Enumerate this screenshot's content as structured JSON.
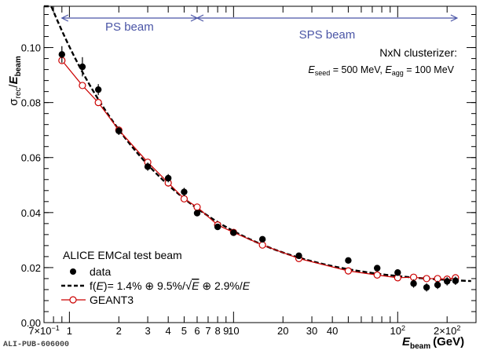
{
  "chart_data": {
    "type": "scatter",
    "x_scale": "log",
    "xlim": [
      0.7,
      300
    ],
    "ylim": [
      0,
      0.115
    ],
    "xlabel_main": "E",
    "xlabel_sub": "beam",
    "xlabel_unit": "(GeV)",
    "ylabel_sigma": "σ",
    "ylabel_sub1": "rec",
    "ylabel_slash": "/",
    "ylabel_E": "E",
    "ylabel_sub2": "beam",
    "y_ticks": [
      {
        "value": 0,
        "label": "0.00"
      },
      {
        "value": 0.02,
        "label": "0.02"
      },
      {
        "value": 0.04,
        "label": "0.04"
      },
      {
        "value": 0.06,
        "label": "0.06"
      },
      {
        "value": 0.08,
        "label": "0.08"
      },
      {
        "value": 0.1,
        "label": "0.10"
      }
    ],
    "x_tick_labels": [
      {
        "value": 0.7,
        "label": "7×10",
        "sup": "−1"
      },
      {
        "value": 1,
        "label": "1"
      },
      {
        "value": 2,
        "label": "2"
      },
      {
        "value": 3,
        "label": "3"
      },
      {
        "value": 4,
        "label": "4"
      },
      {
        "value": 5,
        "label": "5"
      },
      {
        "value": 6,
        "label": "6"
      },
      {
        "value": 7,
        "label": "7"
      },
      {
        "value": 8,
        "label": "8"
      },
      {
        "value": 9,
        "label": "9"
      },
      {
        "value": 10,
        "label": "10"
      },
      {
        "value": 20,
        "label": "20"
      },
      {
        "value": 30,
        "label": "30"
      },
      {
        "value": 40,
        "label": "40"
      },
      {
        "value": 100,
        "label": "10",
        "sup": "2"
      },
      {
        "value": 200,
        "label": "2×10",
        "sup": "2"
      }
    ],
    "x_minor_ticks": [
      0.8,
      0.9,
      50,
      60,
      70,
      80,
      90,
      300
    ],
    "series": [
      {
        "name": "data",
        "marker": "filled-circle",
        "color": "#000000",
        "points": [
          {
            "x": 0.9,
            "y": 0.0975,
            "err": 0.003
          },
          {
            "x": 1.2,
            "y": 0.093,
            "err": 0.0035
          },
          {
            "x": 1.5,
            "y": 0.0847,
            "err": 0.002
          },
          {
            "x": 2.0,
            "y": 0.0697,
            "err": 0.0015
          },
          {
            "x": 3.0,
            "y": 0.0567,
            "err": 0.0015
          },
          {
            "x": 4.0,
            "y": 0.0525,
            "err": 0.0015
          },
          {
            "x": 5.0,
            "y": 0.0475,
            "err": 0.0015
          },
          {
            "x": 6.0,
            "y": 0.0398,
            "err": 0.001
          },
          {
            "x": 8.0,
            "y": 0.0348,
            "err": 0.001
          },
          {
            "x": 10.0,
            "y": 0.0327,
            "err": 0.001
          },
          {
            "x": 15.0,
            "y": 0.0303,
            "err": 0.001
          },
          {
            "x": 25.0,
            "y": 0.0243,
            "err": 0.001
          },
          {
            "x": 50.0,
            "y": 0.0226,
            "err": 0.001
          },
          {
            "x": 75.0,
            "y": 0.0198,
            "err": 0.001
          },
          {
            "x": 100.0,
            "y": 0.0182,
            "err": 0.0012
          },
          {
            "x": 125.0,
            "y": 0.0142,
            "err": 0.0015
          },
          {
            "x": 150.0,
            "y": 0.0128,
            "err": 0.0015
          },
          {
            "x": 175.0,
            "y": 0.0137,
            "err": 0.0015
          },
          {
            "x": 200.0,
            "y": 0.015,
            "err": 0.0015
          },
          {
            "x": 225.0,
            "y": 0.0152,
            "err": 0.0015
          }
        ]
      },
      {
        "name": "GEANT3",
        "marker": "open-circle",
        "color": "#cc0000",
        "points": [
          {
            "x": 0.9,
            "y": 0.0953
          },
          {
            "x": 1.2,
            "y": 0.0862
          },
          {
            "x": 1.5,
            "y": 0.08
          },
          {
            "x": 2.0,
            "y": 0.07
          },
          {
            "x": 3.0,
            "y": 0.0583
          },
          {
            "x": 4.0,
            "y": 0.0508
          },
          {
            "x": 5.0,
            "y": 0.045
          },
          {
            "x": 6.0,
            "y": 0.042
          },
          {
            "x": 8.0,
            "y": 0.0355
          },
          {
            "x": 10.0,
            "y": 0.0328
          },
          {
            "x": 15.0,
            "y": 0.0282
          },
          {
            "x": 25.0,
            "y": 0.0233
          },
          {
            "x": 50.0,
            "y": 0.0188
          },
          {
            "x": 75.0,
            "y": 0.0173
          },
          {
            "x": 100.0,
            "y": 0.0163
          },
          {
            "x": 125.0,
            "y": 0.0165
          },
          {
            "x": 150.0,
            "y": 0.016
          },
          {
            "x": 175.0,
            "y": 0.016
          },
          {
            "x": 200.0,
            "y": 0.0158
          },
          {
            "x": 225.0,
            "y": 0.0163
          }
        ]
      },
      {
        "name": "fit",
        "style": "dashed-line",
        "color": "#000000",
        "params": {
          "a": 0.014,
          "b": 0.095,
          "c": 0.029
        },
        "x_range": [
          0.7,
          280
        ]
      }
    ],
    "legend": {
      "title": "ALICE EMCal test beam",
      "data_label": "data",
      "fit_label_prefix": "f(",
      "fit_label_E": "E",
      "fit_label_mid": ")= 1.4% ⊕ 9.5%/",
      "fit_label_sqrtE": "E",
      "fit_label_end": " ⊕ 2.9%/",
      "fit_label_end_E": "E",
      "geant_label": "GEANT3"
    },
    "annotations": {
      "ps_beam": {
        "label": "PS beam",
        "x_from": 0.9,
        "x_to": 6
      },
      "sps_beam": {
        "label": "SPS beam",
        "x_from": 6,
        "x_to": 230
      },
      "clusterizer": "NxN clusterizer:",
      "seed_E": "E",
      "seed_sub": "seed",
      "seed_val": " = 500 MeV, ",
      "agg_E": "E",
      "agg_sub": "agg",
      "agg_val": " = 100 MeV"
    },
    "arrow_color": "#4a55a6"
  },
  "footer": {
    "code": "ALI-PUB-606000"
  }
}
